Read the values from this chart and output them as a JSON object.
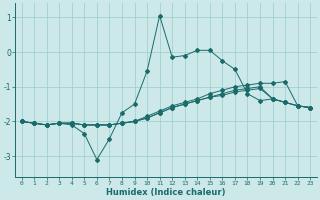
{
  "xlabel": "Humidex (Indice chaleur)",
  "bg_color": "#cce8e8",
  "grid_color": "#99cccc",
  "line_color": "#1a6b6b",
  "x_values": [
    0,
    1,
    2,
    3,
    4,
    5,
    6,
    7,
    8,
    9,
    10,
    11,
    12,
    13,
    14,
    15,
    16,
    17,
    18,
    19,
    20,
    21,
    22,
    23
  ],
  "series": [
    [
      -2.0,
      -2.05,
      -2.1,
      -2.05,
      -2.1,
      -2.35,
      -3.1,
      -2.5,
      -1.75,
      -1.5,
      -0.55,
      1.05,
      -0.15,
      -0.1,
      0.05,
      0.05,
      -0.25,
      -0.5,
      -1.2,
      -1.4,
      -1.35,
      -1.45,
      -1.55,
      -1.6
    ],
    [
      -2.0,
      -2.05,
      -2.1,
      -2.05,
      -2.05,
      -2.1,
      -2.1,
      -2.1,
      -2.05,
      -2.0,
      -1.85,
      -1.7,
      -1.55,
      -1.45,
      -1.35,
      -1.2,
      -1.1,
      -1.0,
      -0.95,
      -0.9,
      -0.9,
      -0.85,
      -1.55,
      -1.6
    ],
    [
      -2.0,
      -2.05,
      -2.1,
      -2.05,
      -2.05,
      -2.1,
      -2.1,
      -2.1,
      -2.05,
      -2.0,
      -1.9,
      -1.75,
      -1.6,
      -1.5,
      -1.4,
      -1.3,
      -1.2,
      -1.1,
      -1.05,
      -1.0,
      -1.35,
      -1.45,
      -1.55,
      -1.6
    ],
    [
      -2.0,
      -2.05,
      -2.1,
      -2.05,
      -2.05,
      -2.1,
      -2.1,
      -2.1,
      -2.05,
      -2.0,
      -1.9,
      -1.75,
      -1.6,
      -1.5,
      -1.4,
      -1.3,
      -1.25,
      -1.15,
      -1.1,
      -1.05,
      -1.35,
      -1.45,
      -1.55,
      -1.6
    ]
  ],
  "ylim": [
    -3.6,
    1.4
  ],
  "yticks": [
    -3,
    -2,
    -1,
    0,
    1
  ],
  "xlim": [
    -0.5,
    23.5
  ]
}
